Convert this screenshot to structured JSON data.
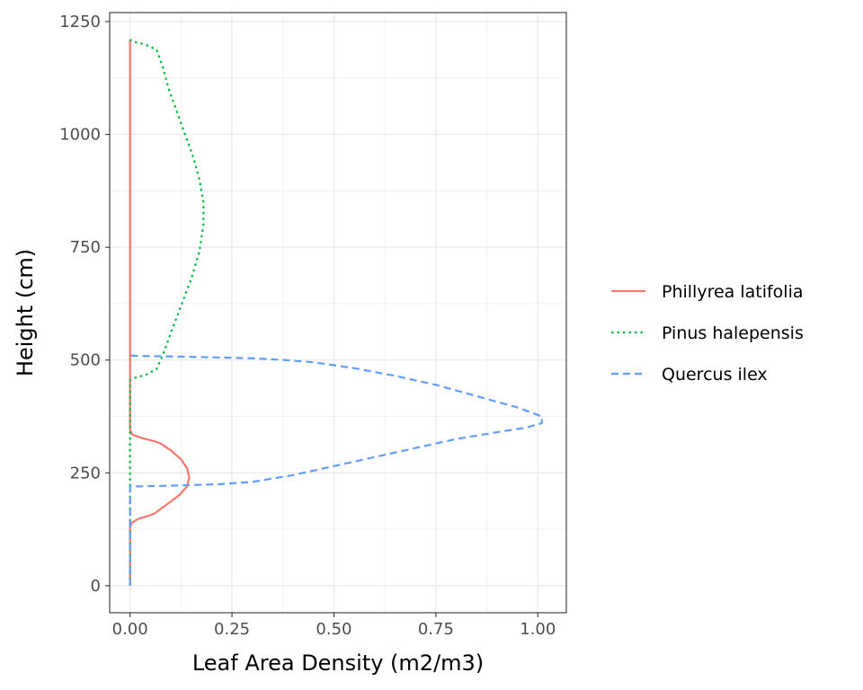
{
  "chart_data": {
    "type": "line",
    "title": "",
    "xlabel": "Leaf Area Density (m2/m3)",
    "ylabel": "Height (cm)",
    "xlim": [
      -0.05,
      1.07
    ],
    "ylim": [
      -60,
      1270
    ],
    "xticks": [
      0,
      0.25,
      0.5,
      0.75,
      1
    ],
    "xtick_labels": [
      "0.00",
      "0.25",
      "0.50",
      "0.75",
      "1.00"
    ],
    "yticks": [
      0,
      250,
      500,
      750,
      1000,
      1250
    ],
    "ytick_labels": [
      "0",
      "250",
      "500",
      "750",
      "1000",
      "1250"
    ],
    "grid": true,
    "legend_position": "right",
    "series": [
      {
        "name": "Phillyrea latifolia",
        "color": "#F8766D",
        "dash": "solid",
        "points": [
          [
            0,
            0
          ],
          [
            0,
            130
          ],
          [
            0.005,
            140
          ],
          [
            0.02,
            148
          ],
          [
            0.045,
            155
          ],
          [
            0.06,
            160
          ],
          [
            0.09,
            180
          ],
          [
            0.12,
            200
          ],
          [
            0.14,
            220
          ],
          [
            0.145,
            240
          ],
          [
            0.14,
            260
          ],
          [
            0.125,
            280
          ],
          [
            0.1,
            300
          ],
          [
            0.075,
            315
          ],
          [
            0.06,
            320
          ],
          [
            0.03,
            327
          ],
          [
            0.005,
            335
          ],
          [
            0,
            345
          ],
          [
            0,
            1210
          ]
        ]
      },
      {
        "name": "Pinus halepensis",
        "color": "#00BA38",
        "dash": "dotted",
        "points": [
          [
            0,
            0
          ],
          [
            0,
            455
          ],
          [
            0.01,
            460
          ],
          [
            0.04,
            468
          ],
          [
            0.065,
            480
          ],
          [
            0.08,
            510
          ],
          [
            0.1,
            560
          ],
          [
            0.125,
            620
          ],
          [
            0.15,
            680
          ],
          [
            0.17,
            740
          ],
          [
            0.18,
            800
          ],
          [
            0.18,
            850
          ],
          [
            0.17,
            900
          ],
          [
            0.155,
            950
          ],
          [
            0.135,
            1000
          ],
          [
            0.115,
            1050
          ],
          [
            0.095,
            1100
          ],
          [
            0.08,
            1150
          ],
          [
            0.065,
            1188
          ],
          [
            0.035,
            1200
          ],
          [
            0.01,
            1205
          ],
          [
            0,
            1210
          ]
        ]
      },
      {
        "name": "Quercus ilex",
        "color": "#619CFF",
        "dash": "dashed",
        "points": [
          [
            0,
            0
          ],
          [
            0,
            220
          ],
          [
            0.02,
            220
          ],
          [
            0.12,
            222
          ],
          [
            0.22,
            225
          ],
          [
            0.3,
            230
          ],
          [
            0.4,
            245
          ],
          [
            0.5,
            265
          ],
          [
            0.6,
            285
          ],
          [
            0.7,
            305
          ],
          [
            0.8,
            325
          ],
          [
            0.9,
            340
          ],
          [
            0.97,
            350
          ],
          [
            1.01,
            360
          ],
          [
            1.01,
            375
          ],
          [
            0.95,
            395
          ],
          [
            0.85,
            420
          ],
          [
            0.75,
            445
          ],
          [
            0.65,
            465
          ],
          [
            0.55,
            482
          ],
          [
            0.45,
            495
          ],
          [
            0.38,
            500
          ],
          [
            0.3,
            504
          ],
          [
            0.2,
            506
          ],
          [
            0.1,
            508
          ],
          [
            0.02,
            509
          ],
          [
            0,
            510
          ]
        ]
      }
    ]
  }
}
